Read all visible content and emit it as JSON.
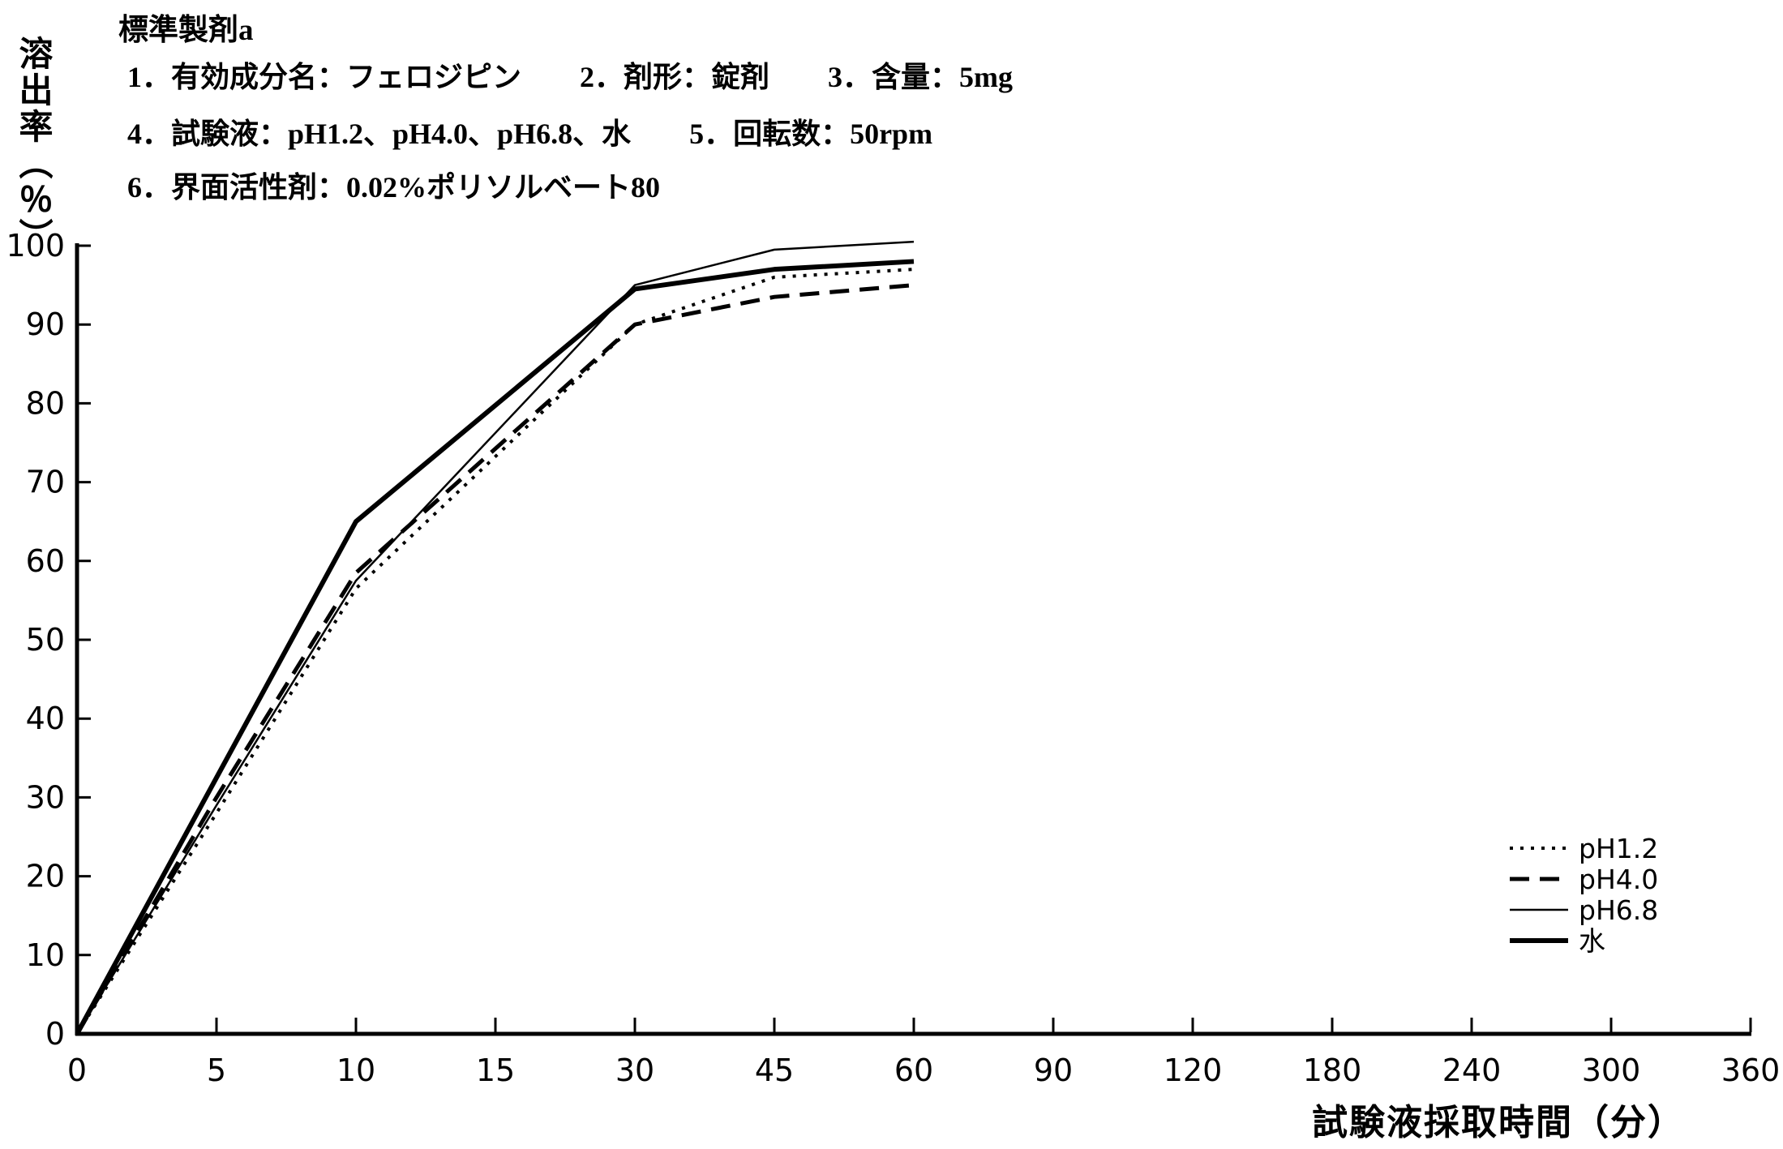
{
  "header": {
    "title": "標準製剤a",
    "lines": [
      "1．有効成分名：フェロジピン　　2．剤形：錠剤　　3．含量：5mg",
      "4．試験液：pH1.2、pH4.0、pH6.8、水　　5．回転数：50rpm",
      "6．界面活性剤：0.02%ポリソルベート80"
    ]
  },
  "chart_data": {
    "type": "line",
    "title": "標準製剤a",
    "ylabel": "溶出率（％）",
    "xlabel": "試験液採取時間（分）",
    "x_tick_values": [
      0,
      5,
      10,
      15,
      30,
      45,
      60,
      90,
      120,
      180,
      240,
      300,
      360
    ],
    "x_tick_labels": [
      "0",
      "5",
      "10",
      "15",
      "30",
      "45",
      "60",
      "90",
      "120",
      "180",
      "240",
      "300",
      "360"
    ],
    "y_tick_values": [
      0,
      10,
      20,
      30,
      40,
      50,
      60,
      70,
      80,
      90,
      100
    ],
    "y_tick_labels": [
      "0",
      "10",
      "20",
      "30",
      "40",
      "50",
      "60",
      "70",
      "80",
      "90",
      "100"
    ],
    "ylim": [
      0,
      100
    ],
    "grid": false,
    "legend_position": "right-middle",
    "x_minutes": [
      0,
      5,
      10,
      30,
      45,
      60
    ],
    "series": [
      {
        "name": "pH1.2",
        "style": "dotted",
        "values": [
          0,
          28,
          56.5,
          90,
          96,
          97
        ]
      },
      {
        "name": "pH4.0",
        "style": "dashed",
        "values": [
          0,
          30,
          58.5,
          90,
          93.5,
          95
        ]
      },
      {
        "name": "pH6.8",
        "style": "thin-solid",
        "values": [
          0,
          29,
          57.5,
          95,
          99.5,
          100.5
        ]
      },
      {
        "name": "水",
        "style": "thick-solid",
        "values": [
          0,
          32.5,
          65,
          94.5,
          97,
          98
        ]
      }
    ]
  },
  "colors": {
    "ink": "#000000",
    "background": "#ffffff"
  }
}
